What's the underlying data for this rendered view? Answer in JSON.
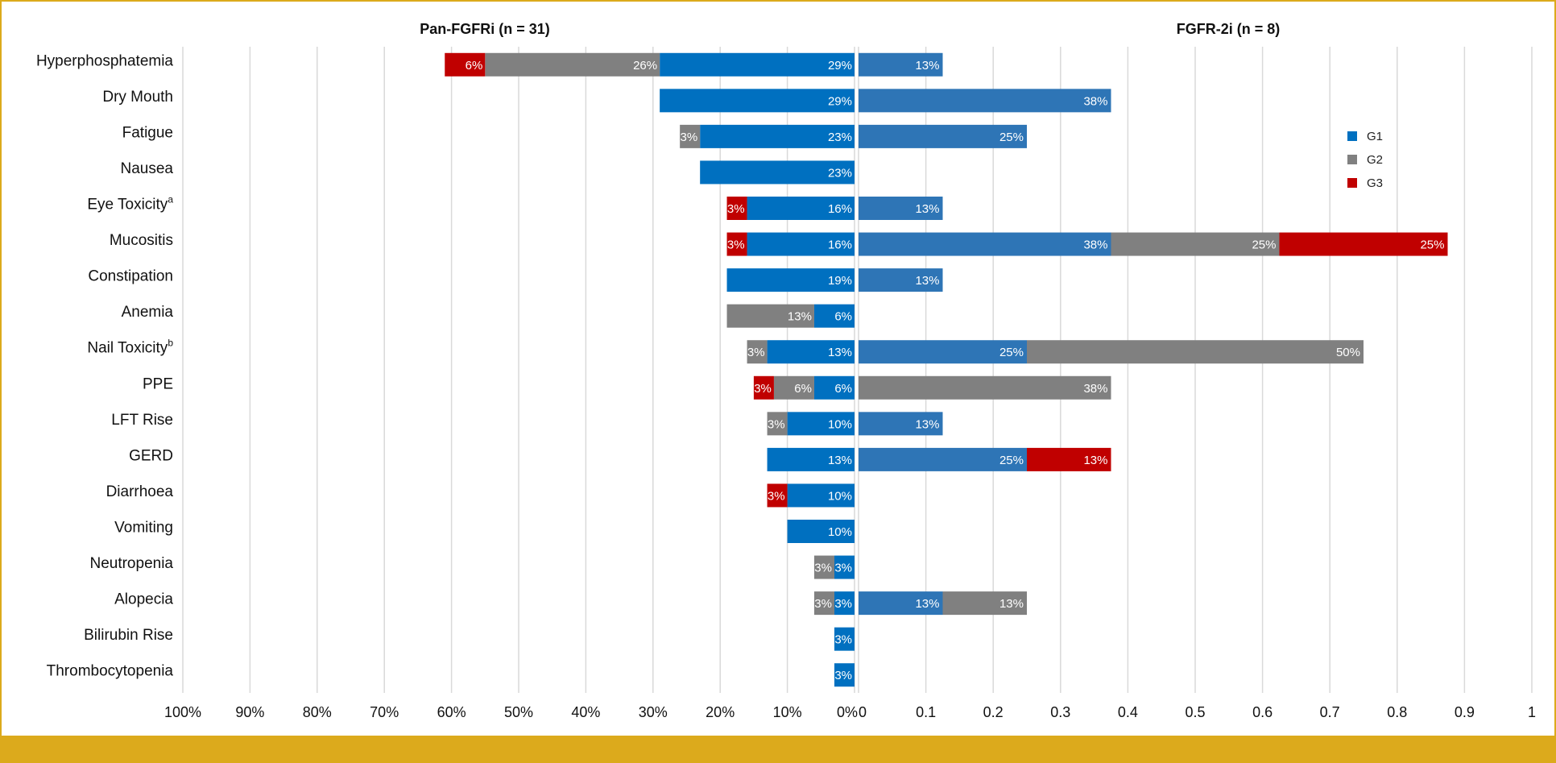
{
  "chart_data": {
    "type": "bar",
    "orientation": "horizontal-stacked",
    "categories": [
      "Hyperphosphatemia",
      "Dry Mouth",
      "Fatigue",
      "Nausea",
      "Eye Toxicity",
      "Mucositis",
      "Constipation",
      "Anemia",
      "Nail Toxicity",
      "PPE",
      "LFT Rise",
      "GERD",
      "Diarrhoea",
      "Vomiting",
      "Neutropenia",
      "Alopecia",
      "Bilirubin Rise",
      "Thrombocytopenia"
    ],
    "category_superscripts": {
      "Eye Toxicity": "a",
      "Nail Toxicity": "b"
    },
    "series_colors": {
      "G1": "#0070c0",
      "G2": "#808080",
      "G3": "#c00000"
    },
    "legend": {
      "position": "top-right",
      "entries": [
        "G1",
        "G2",
        "G3"
      ]
    },
    "grid": true,
    "panels": [
      {
        "title": "Pan-FGFRi (n = 31)",
        "direction": "leftward",
        "xlim": [
          0,
          100
        ],
        "g1_color": "#0070c0",
        "tick_values": [
          100,
          90,
          80,
          70,
          60,
          50,
          40,
          30,
          20,
          10,
          0
        ],
        "tick_labels": [
          "100%",
          "90%",
          "80%",
          "70%",
          "60%",
          "50%",
          "40%",
          "30%",
          "20%",
          "10%",
          "0%"
        ],
        "series": [
          {
            "name": "G1",
            "values": [
              29,
              29,
              23,
              23,
              16,
              16,
              19,
              6,
              13,
              6,
              10,
              13,
              10,
              10,
              3,
              3,
              3,
              3
            ],
            "labels": [
              "29%",
              "29%",
              "23%",
              "23%",
              "16%",
              "16%",
              "19%",
              "6%",
              "13%",
              "6%",
              "10%",
              "13%",
              "10%",
              "10%",
              "3%",
              "3%",
              "3%",
              "3%"
            ]
          },
          {
            "name": "G2",
            "values": [
              26,
              0,
              3,
              0,
              0,
              0,
              0,
              13,
              3,
              6,
              3,
              0,
              0,
              0,
              3,
              3,
              0,
              0
            ],
            "labels": [
              "26%",
              "",
              "3%",
              "",
              "",
              "",
              "",
              "13%",
              "3%",
              "6%",
              "3%",
              "",
              "",
              "",
              "3%",
              "3%",
              "",
              ""
            ]
          },
          {
            "name": "G3",
            "values": [
              6,
              0,
              0,
              0,
              3,
              3,
              0,
              0,
              0,
              3,
              0,
              0,
              3,
              0,
              0,
              0,
              0,
              0
            ],
            "labels": [
              "6%",
              "",
              "",
              "",
              "3%",
              "3%",
              "",
              "",
              "",
              "3%",
              "",
              "",
              "3%",
              "",
              "",
              "",
              "",
              ""
            ]
          }
        ]
      },
      {
        "title": "FGFR-2i (n = 8)",
        "direction": "rightward",
        "xlim": [
          0,
          1
        ],
        "g1_color": "#2e75b6",
        "tick_values": [
          0,
          0.1,
          0.2,
          0.3,
          0.4,
          0.5,
          0.6,
          0.7,
          0.8,
          0.9,
          1
        ],
        "tick_labels": [
          "0",
          "0.1",
          "0.2",
          "0.3",
          "0.4",
          "0.5",
          "0.6",
          "0.7",
          "0.8",
          "0.9",
          "1"
        ],
        "series": [
          {
            "name": "G1",
            "values": [
              0.125,
              0.375,
              0.25,
              0,
              0.125,
              0.375,
              0.125,
              0,
              0.25,
              0,
              0.125,
              0.25,
              0,
              0,
              0,
              0.125,
              0,
              0
            ],
            "labels": [
              "13%",
              "38%",
              "25%",
              "",
              "13%",
              "38%",
              "13%",
              "",
              "25%",
              "",
              "13%",
              "25%",
              "",
              "",
              "",
              "13%",
              "",
              ""
            ]
          },
          {
            "name": "G2",
            "values": [
              0,
              0,
              0,
              0,
              0,
              0.25,
              0,
              0,
              0.5,
              0.375,
              0,
              0,
              0,
              0,
              0,
              0.125,
              0,
              0
            ],
            "labels": [
              "",
              "",
              "",
              "",
              "",
              "25%",
              "",
              "",
              "50%",
              "38%",
              "",
              "",
              "",
              "",
              "",
              "13%",
              "",
              ""
            ]
          },
          {
            "name": "G3",
            "values": [
              0,
              0,
              0,
              0,
              0,
              0.25,
              0,
              0,
              0,
              0,
              0,
              0.125,
              0,
              0,
              0,
              0,
              0,
              0
            ],
            "labels": [
              "",
              "",
              "",
              "",
              "",
              "25%",
              "",
              "",
              "",
              "",
              "",
              "13%",
              "",
              "",
              "",
              "",
              "",
              ""
            ]
          }
        ]
      }
    ]
  }
}
